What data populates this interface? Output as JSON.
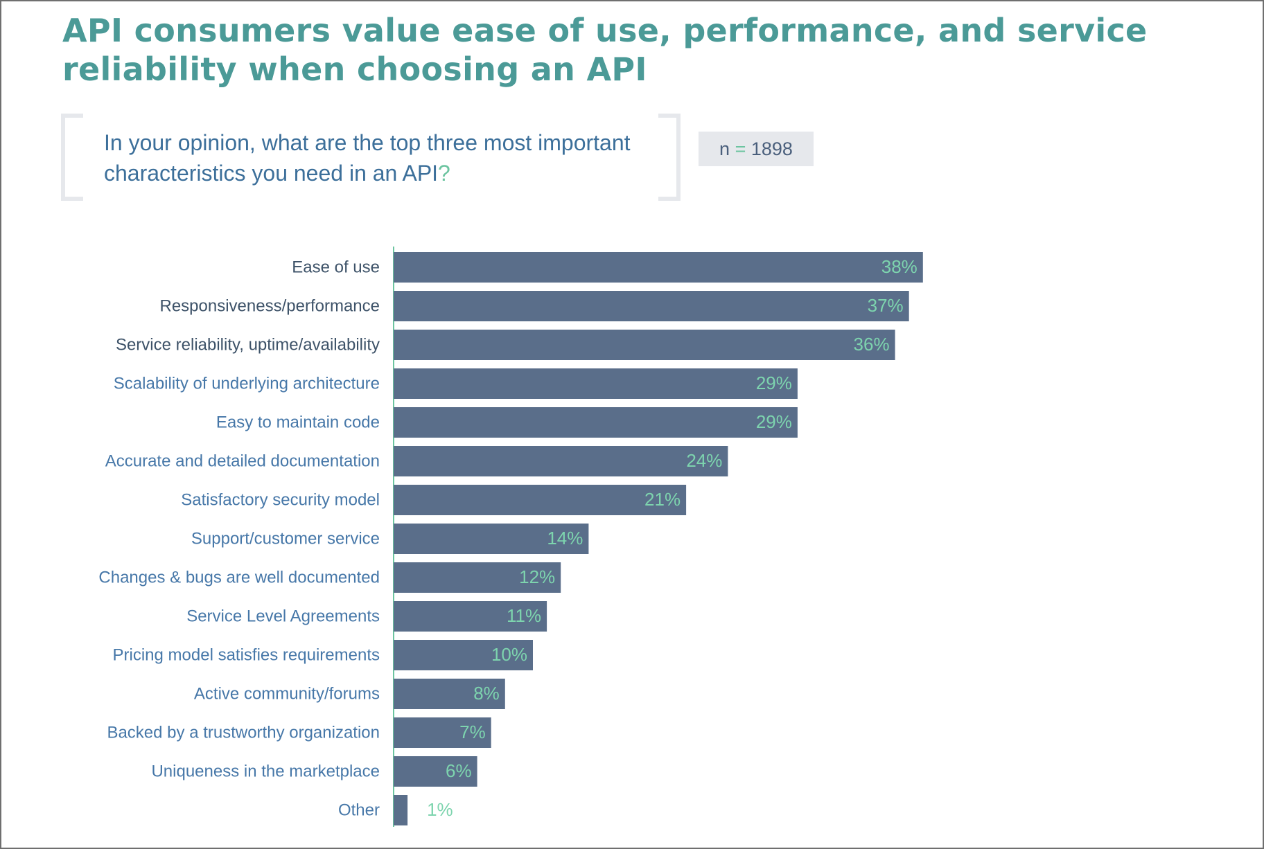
{
  "title": "API consumers value ease of use, performance, and service reliability when choosing an API",
  "question": {
    "text": "In your opinion, what are the top three most important characteristics you need in an API",
    "mark": "?"
  },
  "sample": {
    "prefix": "n",
    "eq": "=",
    "value": "1898"
  },
  "colors": {
    "title": "#4b9a97",
    "bar": "#5a6e8a",
    "value_label": "#7dd4ae",
    "label_dark": "#3d5268",
    "label": "#4677a8",
    "axis": "#6cc4a0"
  },
  "chart_data": {
    "type": "bar",
    "orientation": "horizontal",
    "categories": [
      "Ease of use",
      "Responsiveness/performance",
      "Service reliability, uptime/availability",
      "Scalability of underlying architecture",
      "Easy to maintain code",
      "Accurate and detailed documentation",
      "Satisfactory security model",
      "Support/customer service",
      "Changes & bugs are well documented",
      "Service Level Agreements",
      "Pricing model satisfies requirements",
      "Active community/forums",
      "Backed by a trustworthy organization",
      "Uniqueness in the marketplace",
      "Other"
    ],
    "values": [
      38,
      37,
      36,
      29,
      29,
      24,
      21,
      14,
      12,
      11,
      10,
      8,
      7,
      6,
      1
    ],
    "value_labels": [
      "38%",
      "37%",
      "36%",
      "29%",
      "29%",
      "24%",
      "21%",
      "14%",
      "12%",
      "11%",
      "10%",
      "8%",
      "7%",
      "6%",
      "1%"
    ],
    "emphasized_labels": 3,
    "unit": "%"
  }
}
